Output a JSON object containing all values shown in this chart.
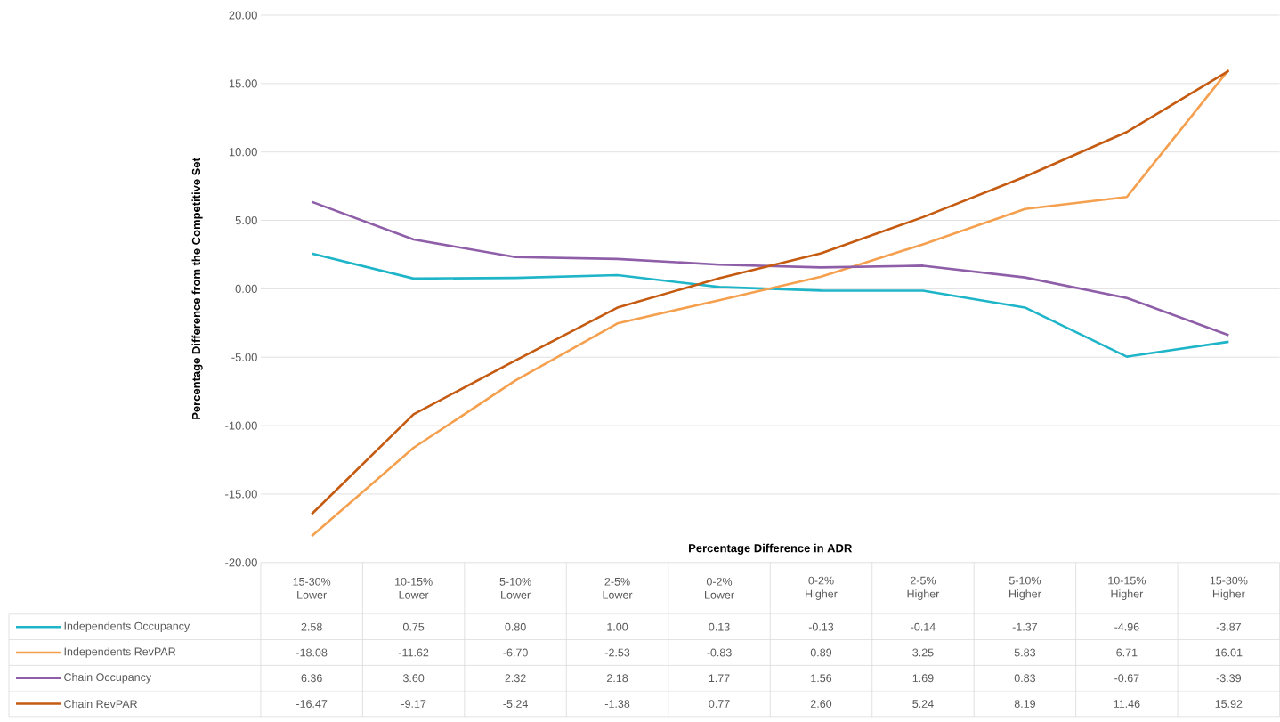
{
  "chart_data": {
    "type": "line",
    "xlabel": "Percentage Difference in ADR",
    "ylabel": "Percentage Difference from the Competitive Set",
    "categories": [
      "15-30% Lower",
      "10-15% Lower",
      "5-10% Lower",
      "2-5% Lower",
      "0-2% Lower",
      "0-2% Higher",
      "2-5% Higher",
      "5-10% Higher",
      "10-15% Higher",
      "15-30% Higher"
    ],
    "series": [
      {
        "name": "Independents Occupancy",
        "color": "#1fb5c9",
        "values": [
          2.58,
          0.75,
          0.8,
          1.0,
          0.13,
          -0.13,
          -0.14,
          -1.37,
          -4.96,
          -3.87
        ],
        "value_labels": [
          "2.58",
          "0.75",
          "0.80",
          "1.00",
          "0.13",
          "-0.13",
          "-0.14",
          "-1.37",
          "-4.96",
          "-3.87"
        ]
      },
      {
        "name": "Independents RevPAR",
        "color": "#f5a04f",
        "values": [
          -18.08,
          -11.62,
          -6.7,
          -2.53,
          -0.83,
          0.89,
          3.25,
          5.83,
          6.71,
          16.01
        ],
        "value_labels": [
          "-18.08",
          "-11.62",
          "-6.70",
          "-2.53",
          "-0.83",
          "0.89",
          "3.25",
          "5.83",
          "6.71",
          "16.01"
        ]
      },
      {
        "name": "Chain Occupancy",
        "color": "#8e5ea8",
        "values": [
          6.36,
          3.6,
          2.32,
          2.18,
          1.77,
          1.56,
          1.69,
          0.83,
          -0.67,
          -3.39
        ],
        "value_labels": [
          "6.36",
          "3.60",
          "2.32",
          "2.18",
          "1.77",
          "1.56",
          "1.69",
          "0.83",
          "-0.67",
          "-3.39"
        ]
      },
      {
        "name": "Chain RevPAR",
        "color": "#c55a11",
        "values": [
          -16.47,
          -9.17,
          -5.24,
          -1.38,
          0.77,
          2.6,
          5.24,
          8.19,
          11.46,
          15.92
        ],
        "value_labels": [
          "-16.47",
          "-9.17",
          "-5.24",
          "-1.38",
          "0.77",
          "2.60",
          "5.24",
          "8.19",
          "11.46",
          "15.92"
        ]
      }
    ],
    "ylim": [
      -20,
      20
    ],
    "yticks": [
      {
        "value": -20,
        "label": "-20.00"
      },
      {
        "value": -15,
        "label": "-15.00"
      },
      {
        "value": -10,
        "label": "-10.00"
      },
      {
        "value": -5,
        "label": "-5.00"
      },
      {
        "value": 0,
        "label": "0.00"
      },
      {
        "value": 5,
        "label": "5.00"
      },
      {
        "value": 10,
        "label": "10.00"
      },
      {
        "value": 15,
        "label": "15.00"
      },
      {
        "value": 20,
        "label": "20.00"
      }
    ],
    "grid": "y",
    "legend": "bottom",
    "marker": "none",
    "line_style": "solid"
  }
}
